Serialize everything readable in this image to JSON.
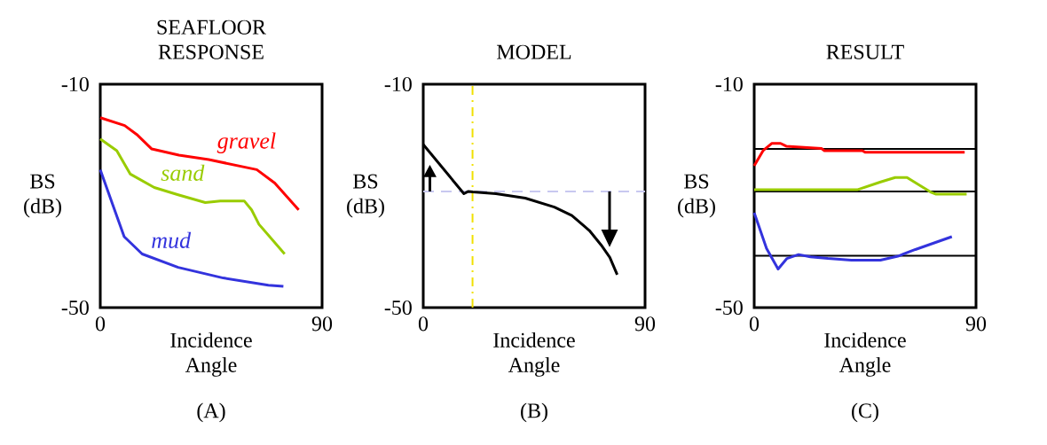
{
  "chart_data": [
    {
      "type": "line",
      "title": "SEAFLOOR RESPONSE",
      "xlabel": "Incidence Angle",
      "ylabel": "BS (dB)",
      "xlim": [
        0,
        90
      ],
      "ylim": [
        -50,
        -10
      ],
      "xticks": [
        0,
        90
      ],
      "yticks": [
        -10,
        -50
      ],
      "annotations": [
        "(A)"
      ],
      "series": [
        {
          "name": "gravel",
          "color": "#ff0000",
          "x": [
            0,
            9.9,
            14.8,
            20.9,
            31.9,
            44,
            63.5,
            70.8,
            80.5
          ],
          "values": [
            -16.0,
            -17.4,
            -19.0,
            -21.6,
            -22.7,
            -23.5,
            -25.3,
            -27.7,
            -32.5
          ]
        },
        {
          "name": "sand",
          "color": "#99cc00",
          "x": [
            0,
            6.7,
            12.2,
            21.9,
            31.6,
            42.6,
            48.7,
            58.4,
            61.4,
            64.4,
            74.8
          ],
          "values": [
            -19.8,
            -21.9,
            -26.1,
            -28.5,
            -29.8,
            -31.2,
            -30.9,
            -30.9,
            -32.5,
            -35.1,
            -40.4
          ]
        },
        {
          "name": "mud",
          "color": "#3333dd",
          "x": [
            0,
            4.9,
            9.7,
            17.0,
            31.6,
            49.9,
            68.2,
            74.3
          ],
          "values": [
            -25.3,
            -31.4,
            -37.3,
            -40.4,
            -42.8,
            -44.7,
            -46.0,
            -46.2
          ]
        }
      ]
    },
    {
      "type": "line",
      "title": "MODEL",
      "xlabel": "Incidence Angle",
      "ylabel": "BS (dB)",
      "xlim": [
        0,
        90
      ],
      "ylim": [
        -50,
        -10
      ],
      "xticks": [
        0,
        90
      ],
      "yticks": [
        -10,
        -50
      ],
      "annotations": [
        "(B)"
      ],
      "ref_lines": [
        {
          "axis": "y",
          "value": -29.2,
          "color": "#c8c8f0",
          "line_style": "dashed"
        },
        {
          "axis": "x",
          "value": 20,
          "color": "#f0e000",
          "line_style": "dashdot"
        }
      ],
      "series": [
        {
          "color": "#000000",
          "x": [
            0,
            16.5,
            18.3,
            20.1,
            29.5,
            41.4,
            53.2,
            60.3,
            67.4,
            72.2,
            75.7,
            78.7
          ],
          "values": [
            -20.8,
            -29.6,
            -29.2,
            -29.3,
            -29.6,
            -30.4,
            -32.0,
            -33.5,
            -36.2,
            -38.8,
            -41.0,
            -44.1
          ]
        }
      ]
    },
    {
      "type": "line",
      "title": "RESULT",
      "xlabel": "Incidence Angle",
      "ylabel": "BS (dB)",
      "xlim": [
        0,
        90
      ],
      "ylim": [
        -50,
        -10
      ],
      "xticks": [
        0,
        90
      ],
      "yticks": [
        -10,
        -50
      ],
      "annotations": [
        "(C)"
      ],
      "ref_lines": [
        {
          "axis": "y",
          "value": -21.6,
          "color": "#000000"
        },
        {
          "axis": "y",
          "value": -29.2,
          "color": "#000000"
        },
        {
          "axis": "y",
          "value": -40.7,
          "color": "#000000"
        }
      ],
      "series": [
        {
          "color": "#ff0000",
          "x": [
            0,
            3.6,
            7.1,
            10.7,
            13.0,
            27.3,
            28.5,
            43.9,
            45.1,
            85.4
          ],
          "values": [
            -24.6,
            -21.9,
            -20.6,
            -20.6,
            -21.1,
            -21.5,
            -21.9,
            -21.9,
            -22.2,
            -22.2
          ]
        },
        {
          "color": "#99cc00",
          "x": [
            0,
            41.8,
            51.3,
            57.2,
            62.0,
            71.5,
            73.8,
            86.2
          ],
          "values": [
            -28.9,
            -28.9,
            -27.5,
            -26.7,
            -26.7,
            -29.3,
            -29.7,
            -29.7
          ]
        },
        {
          "color": "#3333dd",
          "x": [
            0,
            5,
            9.7,
            13.3,
            18.0,
            22.8,
            29.9,
            39.4,
            51.2,
            58.3,
            65.4,
            80.2
          ],
          "values": [
            -33.0,
            -39.4,
            -43.1,
            -41.2,
            -40.5,
            -40.9,
            -41.2,
            -41.5,
            -41.5,
            -40.8,
            -39.6,
            -37.3
          ]
        }
      ]
    }
  ]
}
